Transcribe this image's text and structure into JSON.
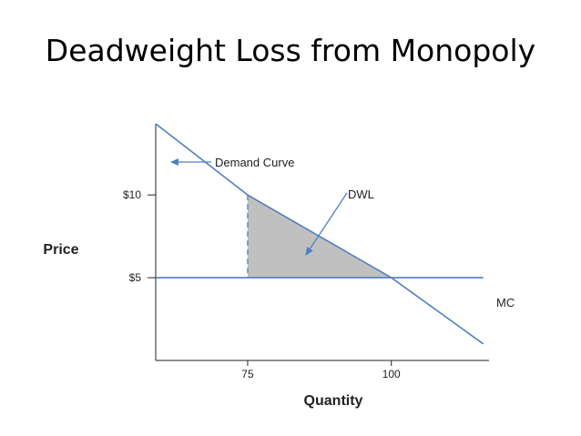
{
  "slide": {
    "title": "Deadweight Loss from Monopoly"
  },
  "chart_data": {
    "type": "line",
    "xlabel": "Quantity",
    "ylabel": "Price",
    "xlim": [
      59,
      117
    ],
    "ylim": [
      0,
      14.3
    ],
    "x_ticks": [
      {
        "value": 75,
        "label": "75"
      },
      {
        "value": 100,
        "label": "100"
      }
    ],
    "y_ticks": [
      {
        "value": 10,
        "label": "$10"
      },
      {
        "value": 5,
        "label": "$5"
      }
    ],
    "series": [
      {
        "name": "Demand Curve",
        "points": [
          [
            59,
            14.3
          ],
          [
            75,
            10
          ],
          [
            100,
            5
          ],
          [
            116,
            1.0
          ]
        ]
      },
      {
        "name": "MC",
        "points": [
          [
            59,
            5
          ],
          [
            116,
            5
          ]
        ]
      }
    ],
    "shaded_region": {
      "label": "DWL",
      "points": [
        [
          75,
          10
        ],
        [
          75,
          5
        ],
        [
          100,
          5
        ]
      ]
    },
    "monopoly_quantity_line": {
      "x": 75,
      "from": 5,
      "to": 10
    },
    "annotations": {
      "demand_label": "Demand Curve",
      "dwl_label": "DWL",
      "mc_label": "MC"
    },
    "colors": {
      "line": "#4f7fbf",
      "axis": "#222222",
      "fill": "#c0c0c0",
      "fill_stroke": "#707070"
    },
    "grid": false,
    "legend": "none"
  }
}
